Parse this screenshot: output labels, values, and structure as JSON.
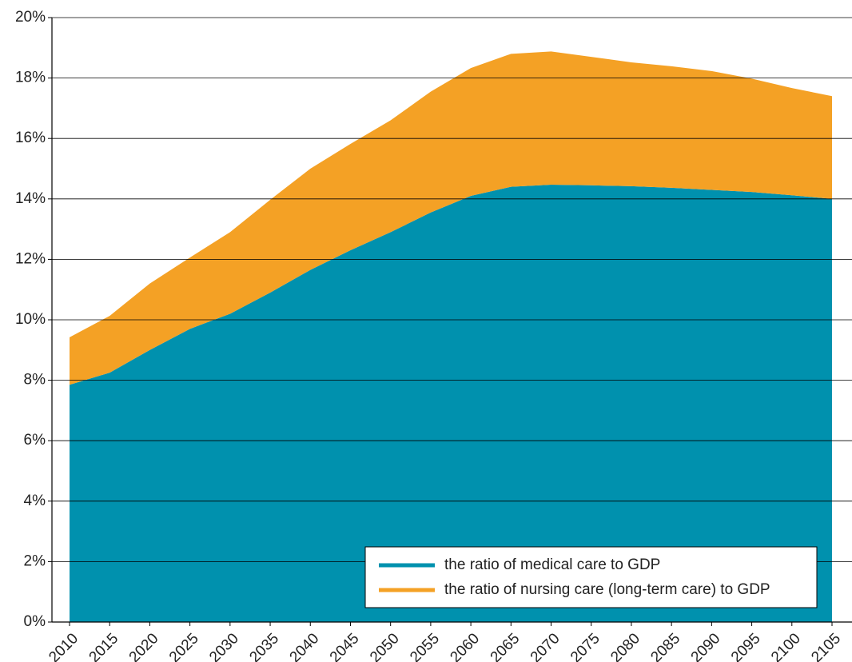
{
  "chart_data": {
    "type": "stacked_area",
    "x": [
      2010,
      2015,
      2020,
      2025,
      2030,
      2035,
      2040,
      2045,
      2050,
      2055,
      2060,
      2065,
      2070,
      2075,
      2080,
      2085,
      2090,
      2095,
      2100,
      2105
    ],
    "xlim": [
      2010,
      2105
    ],
    "series": [
      {
        "name": "the ratio of medical care to GDP",
        "color": "#0091ae",
        "values": [
          7.85,
          8.25,
          9.0,
          9.7,
          10.2,
          10.9,
          11.65,
          12.3,
          12.9,
          13.55,
          14.1,
          14.4,
          14.47,
          14.45,
          14.42,
          14.37,
          14.3,
          14.23,
          14.12,
          14.0
        ]
      },
      {
        "name": "the ratio of nursing care (long-term care) to GDP",
        "color": "#f4a125",
        "values": [
          1.57,
          1.88,
          2.2,
          2.36,
          2.7,
          3.07,
          3.35,
          3.52,
          3.7,
          4.0,
          4.23,
          4.4,
          4.41,
          4.25,
          4.1,
          4.02,
          3.93,
          3.75,
          3.55,
          3.4
        ]
      }
    ],
    "ylim": [
      0,
      20
    ],
    "yticks": [
      {
        "value": 0,
        "label": "0%"
      },
      {
        "value": 2,
        "label": "2%"
      },
      {
        "value": 4,
        "label": "4%"
      },
      {
        "value": 6,
        "label": "6%"
      },
      {
        "value": 8,
        "label": "8%"
      },
      {
        "value": 10,
        "label": "10%"
      },
      {
        "value": 12,
        "label": "12%"
      },
      {
        "value": 14,
        "label": "14%"
      },
      {
        "value": 16,
        "label": "16%"
      },
      {
        "value": 18,
        "label": "18%"
      },
      {
        "value": 20,
        "label": "20%"
      }
    ],
    "grid": true,
    "legend": "lower right"
  }
}
